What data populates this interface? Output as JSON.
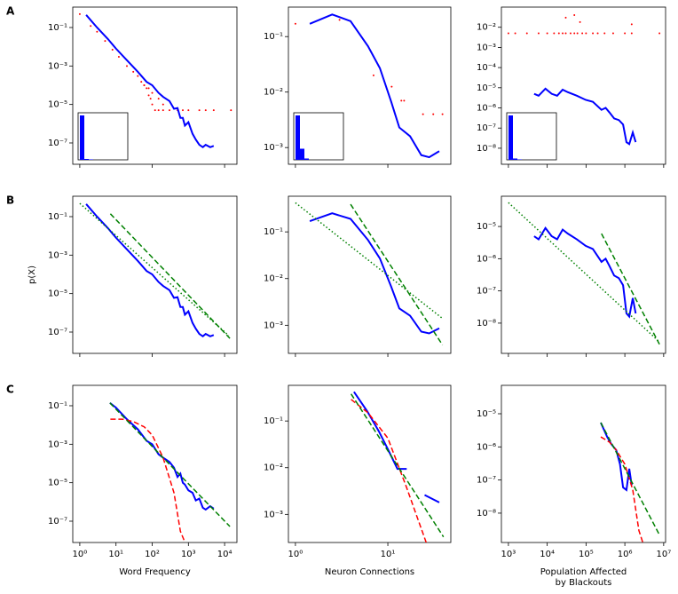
{
  "chart_data": [
    {
      "type": "line",
      "panel_label": "A",
      "xlog": true,
      "ylog": true,
      "xlim": [
        0.64,
        21900
      ],
      "ylim": [
        7.8e-09,
        1.15
      ],
      "xticks": [
        1,
        100,
        10000
      ],
      "yticks": [
        {
          "value": 0.1,
          "label": "10⁻¹"
        },
        {
          "value": 0.001,
          "label": "10⁻³"
        },
        {
          "value": 1e-05,
          "label": "10⁻⁵"
        },
        {
          "value": 1e-07,
          "label": "10⁻⁷"
        }
      ],
      "series": [
        {
          "style": "points",
          "color": "#ff0000",
          "x": [
            1,
            2,
            3,
            5,
            8,
            12,
            20,
            30,
            40,
            50,
            60,
            70,
            80,
            90,
            100,
            120,
            150,
            200,
            300,
            500,
            700,
            1000,
            2000,
            3000,
            5000,
            15000,
            60,
            80,
            100,
            150,
            200
          ],
          "values": [
            0.5,
            0.12,
            0.06,
            0.02,
            0.007,
            0.003,
            0.001,
            0.0005,
            0.0003,
            0.00015,
            0.0001,
            7e-05,
            3e-05,
            2e-05,
            1e-05,
            5e-06,
            5e-06,
            5e-06,
            5e-06,
            5e-06,
            5e-06,
            5e-06,
            5e-06,
            5e-06,
            5e-06,
            5e-06,
            0.0001,
            7e-05,
            4e-05,
            2e-05,
            1e-05
          ]
        },
        {
          "style": "solid",
          "color": "#0000ff",
          "x": [
            1.5,
            3,
            6,
            10,
            20,
            40,
            70,
            100,
            150,
            200,
            300,
            400,
            500,
            600,
            700,
            800,
            1000,
            1300,
            1600,
            2000,
            2500,
            3000,
            4000,
            5000
          ],
          "values": [
            0.45,
            0.1,
            0.025,
            0.008,
            0.002,
            0.0005,
            0.00015,
            0.0001,
            4e-05,
            2.5e-05,
            1.5e-05,
            6e-06,
            6.5e-06,
            2e-06,
            2e-06,
            8e-07,
            1.2e-06,
            3e-07,
            1.5e-07,
            8e-08,
            6e-08,
            8e-08,
            6e-08,
            7e-08
          ]
        }
      ],
      "inset": {
        "color": "#0000ff",
        "values": [
          1,
          0.02,
          0.01
        ]
      }
    },
    {
      "type": "line",
      "xlog": true,
      "ylog": true,
      "xlim": [
        0.84,
        48
      ],
      "ylim": [
        0.0005,
        0.34
      ],
      "xticks": [
        1,
        10
      ],
      "yticks": [
        {
          "value": 0.1,
          "label": "10⁻¹"
        },
        {
          "value": 0.01,
          "label": "10⁻²"
        },
        {
          "value": 0.001,
          "label": "10⁻³"
        }
      ],
      "series": [
        {
          "style": "points",
          "color": "#ff0000",
          "x": [
            1,
            3,
            7,
            11,
            14,
            15,
            24,
            31,
            39
          ],
          "values": [
            0.17,
            0.2,
            0.02,
            0.0125,
            0.007,
            0.007,
            0.004,
            0.004,
            0.004
          ]
        },
        {
          "style": "solid",
          "color": "#0000ff",
          "x": [
            1.43,
            2.5,
            3.95,
            6.1,
            8.2,
            10.9,
            13.3,
            17.4,
            23,
            28,
            36
          ],
          "values": [
            0.17,
            0.25,
            0.19,
            0.067,
            0.027,
            0.0066,
            0.0023,
            0.0016,
            0.00073,
            0.00067,
            0.00086
          ]
        }
      ],
      "inset": {
        "color": "#0000ff",
        "values": [
          1,
          0.25,
          0.03
        ]
      }
    },
    {
      "type": "line",
      "xlog": true,
      "ylog": true,
      "xlim": [
        660,
        11200000
      ],
      "ylim": [
        1.6e-09,
        0.1
      ],
      "xticks": [
        1000,
        10000,
        100000,
        1000000,
        10000000
      ],
      "yticks": [
        {
          "value": 0.01,
          "label": "10⁻²"
        },
        {
          "value": 0.001,
          "label": "10⁻³"
        },
        {
          "value": 0.0001,
          "label": "10⁻⁴"
        },
        {
          "value": 1e-05,
          "label": "10⁻⁵"
        },
        {
          "value": 1e-06,
          "label": "10⁻⁶"
        },
        {
          "value": 1e-07,
          "label": "10⁻⁷"
        },
        {
          "value": 1e-08,
          "label": "10⁻⁸"
        }
      ],
      "series": [
        {
          "style": "points",
          "color": "#ff0000",
          "x": [
            1000,
            1500,
            3000,
            6000,
            10000,
            15000,
            20000,
            25000,
            30000,
            40000,
            50000,
            60000,
            80000,
            100000,
            150000,
            200000,
            300000,
            500000,
            1000000,
            1500000,
            7800000,
            30000,
            50000,
            70000,
            1500000
          ],
          "values": [
            0.005,
            0.005,
            0.005,
            0.005,
            0.005,
            0.005,
            0.005,
            0.005,
            0.005,
            0.005,
            0.005,
            0.005,
            0.005,
            0.005,
            0.005,
            0.005,
            0.005,
            0.005,
            0.005,
            0.005,
            0.005,
            0.03,
            0.04,
            0.018,
            0.014
          ]
        },
        {
          "style": "solid",
          "color": "#0000ff",
          "x": [
            4600,
            6000,
            9000,
            13000,
            18000,
            25000,
            34000,
            58000,
            98000,
            150000,
            250000,
            320000,
            400000,
            530000,
            700000,
            900000,
            1100000,
            1300000,
            1600000,
            1900000
          ],
          "values": [
            5e-06,
            4e-06,
            9e-06,
            5e-06,
            4e-06,
            8e-06,
            6e-06,
            4e-06,
            2.5e-06,
            2e-06,
            8e-07,
            1e-06,
            6e-07,
            3e-07,
            2.5e-07,
            1.5e-07,
            2e-08,
            1.6e-08,
            6e-08,
            2e-08
          ]
        }
      ],
      "inset": {
        "color": "#0000ff",
        "values": [
          1,
          0.03,
          0.01
        ]
      }
    },
    {
      "type": "line",
      "panel_label": "B",
      "ylabel": "p(X)",
      "xlog": true,
      "ylog": true,
      "xlim": [
        0.64,
        21900
      ],
      "ylim": [
        7.8e-09,
        1.15
      ],
      "xticks": [
        1,
        100,
        10000
      ],
      "yticks": [
        {
          "value": 0.1,
          "label": "10⁻¹"
        },
        {
          "value": 0.001,
          "label": "10⁻³"
        },
        {
          "value": 1e-05,
          "label": "10⁻⁵"
        },
        {
          "value": 1e-07,
          "label": "10⁻⁷"
        }
      ],
      "series": [
        {
          "style": "solid",
          "color": "#0000ff",
          "x": [
            1.5,
            3,
            6,
            10,
            20,
            40,
            70,
            100,
            150,
            200,
            300,
            400,
            500,
            600,
            700,
            800,
            1000,
            1300,
            1600,
            2000,
            2500,
            3000,
            4000,
            5000
          ],
          "values": [
            0.45,
            0.1,
            0.025,
            0.008,
            0.002,
            0.0005,
            0.00015,
            0.0001,
            4e-05,
            2.5e-05,
            1.5e-05,
            6e-06,
            6.5e-06,
            2e-06,
            2e-06,
            8e-07,
            1.2e-06,
            3e-07,
            1.5e-07,
            8e-08,
            6e-08,
            8e-08,
            6e-08,
            7e-08
          ]
        },
        {
          "style": "dotted",
          "color": "#008000",
          "x": [
            1,
            13000
          ],
          "values": [
            0.49,
            6.6e-08
          ]
        },
        {
          "style": "dashed",
          "color": "#008000",
          "x": [
            7,
            14000
          ],
          "values": [
            0.14,
            4.7e-08
          ]
        }
      ]
    },
    {
      "type": "line",
      "xlog": true,
      "ylog": true,
      "xlim": [
        0.84,
        48
      ],
      "ylim": [
        0.00025,
        0.58
      ],
      "xticks": [
        1,
        10
      ],
      "yticks": [
        {
          "value": 0.1,
          "label": "10⁻¹"
        },
        {
          "value": 0.01,
          "label": "10⁻²"
        },
        {
          "value": 0.001,
          "label": "10⁻³"
        }
      ],
      "series": [
        {
          "style": "solid",
          "color": "#0000ff",
          "x": [
            1.43,
            2.5,
            3.95,
            6.1,
            8.2,
            10.9,
            13.3,
            17.4,
            23,
            28,
            36
          ],
          "values": [
            0.17,
            0.25,
            0.19,
            0.067,
            0.027,
            0.0066,
            0.0023,
            0.0016,
            0.00073,
            0.00067,
            0.00086
          ]
        },
        {
          "style": "dotted",
          "color": "#008000",
          "x": [
            1,
            39
          ],
          "values": [
            0.42,
            0.0014
          ]
        },
        {
          "style": "dashed",
          "color": "#008000",
          "x": [
            3.95,
            39
          ],
          "values": [
            0.39,
            0.00038
          ]
        }
      ]
    },
    {
      "type": "line",
      "xlog": true,
      "ylog": true,
      "xlim": [
        660,
        11200000
      ],
      "ylim": [
        1.15e-09,
        8.7e-05
      ],
      "xticks": [
        1000,
        10000,
        100000,
        1000000,
        10000000
      ],
      "yticks": [
        {
          "value": 1e-05,
          "label": "10⁻⁵"
        },
        {
          "value": 1e-06,
          "label": "10⁻⁶"
        },
        {
          "value": 1e-07,
          "label": "10⁻⁷"
        },
        {
          "value": 1e-08,
          "label": "10⁻⁸"
        }
      ],
      "series": [
        {
          "style": "solid",
          "color": "#0000ff",
          "x": [
            4600,
            6000,
            9000,
            13000,
            18000,
            25000,
            34000,
            58000,
            98000,
            150000,
            250000,
            320000,
            400000,
            530000,
            700000,
            900000,
            1100000,
            1300000,
            1600000,
            1900000
          ],
          "values": [
            5e-06,
            4e-06,
            9e-06,
            5e-06,
            4e-06,
            8e-06,
            6e-06,
            4e-06,
            2.5e-06,
            2e-06,
            8e-07,
            1e-06,
            6e-07,
            3e-07,
            2.5e-07,
            1.5e-07,
            2e-08,
            1.6e-08,
            6e-08,
            2e-08
          ]
        },
        {
          "style": "dotted",
          "color": "#008000",
          "x": [
            1000,
            7800000
          ],
          "values": [
            5.5e-05,
            2.6e-09
          ]
        },
        {
          "style": "dashed",
          "color": "#008000",
          "x": [
            250000,
            7800000
          ],
          "values": [
            6e-06,
            2.2e-09
          ]
        }
      ]
    },
    {
      "type": "line",
      "panel_label": "C",
      "xlabel": [
        "Word Frequency"
      ],
      "xlog": true,
      "ylog": true,
      "xlim": [
        0.64,
        21900
      ],
      "ylim": [
        7.8e-09,
        1.15
      ],
      "xticks": [
        {
          "value": 1,
          "label": "10⁰"
        },
        {
          "value": 10,
          "label": "10¹"
        },
        {
          "value": 100,
          "label": "10²"
        },
        {
          "value": 1000,
          "label": "10³"
        },
        {
          "value": 10000,
          "label": "10⁴"
        }
      ],
      "yticks": [
        {
          "value": 0.1,
          "label": "10⁻¹"
        },
        {
          "value": 0.001,
          "label": "10⁻³"
        },
        {
          "value": 1e-05,
          "label": "10⁻⁵"
        },
        {
          "value": 1e-07,
          "label": "10⁻⁷"
        }
      ],
      "series": [
        {
          "style": "solid",
          "color": "#0000ff",
          "x": [
            6.8,
            10,
            20,
            40,
            70,
            100,
            150,
            200,
            300,
            400,
            500,
            600,
            700,
            800,
            1000,
            1300,
            1600,
            2000,
            2500,
            3000,
            4000,
            5000
          ],
          "values": [
            0.14,
            0.08,
            0.02,
            0.006,
            0.0015,
            0.001,
            0.0003,
            0.0002,
            0.00012,
            6e-05,
            2e-05,
            3e-05,
            1e-05,
            8e-06,
            4e-06,
            3e-06,
            1.2e-06,
            1.5e-06,
            5e-07,
            4e-07,
            6e-07,
            4.5e-07
          ]
        },
        {
          "style": "dashed",
          "color": "#ff0000",
          "x": [
            7,
            15,
            30,
            60,
            100,
            200,
            400,
            600,
            800
          ],
          "values": [
            0.02,
            0.02,
            0.015,
            0.008,
            0.003,
            0.0002,
            3e-06,
            3e-08,
            8e-09
          ]
        },
        {
          "style": "dashed",
          "color": "#008000",
          "x": [
            6.8,
            14000
          ],
          "values": [
            0.14,
            5.3e-08
          ]
        }
      ]
    },
    {
      "type": "line",
      "xlabel": [
        "Neuron Connections"
      ],
      "xlog": true,
      "ylog": true,
      "xlim": [
        0.84,
        48
      ],
      "ylim": [
        0.00025,
        0.58
      ],
      "xticks": [
        {
          "value": 1,
          "label": "10⁰"
        },
        {
          "value": 10,
          "label": "10¹"
        }
      ],
      "yticks": [
        {
          "value": 0.1,
          "label": "10⁻¹"
        },
        {
          "value": 0.01,
          "label": "10⁻²"
        },
        {
          "value": 0.001,
          "label": "10⁻³"
        }
      ],
      "series": [
        {
          "style": "solid",
          "color": "#0000ff",
          "x": [
            4.3,
            6,
            8,
            10,
            12.7,
            16,
            null,
            25,
            36
          ],
          "values": [
            0.42,
            0.16,
            0.06,
            0.025,
            0.0094,
            0.0094,
            null,
            0.0026,
            0.0018
          ]
        },
        {
          "style": "dashed",
          "color": "#ff0000",
          "x": [
            4,
            6.1,
            10,
            16,
            26
          ],
          "values": [
            0.29,
            0.15,
            0.043,
            0.0037,
            0.00025
          ]
        },
        {
          "style": "dashed",
          "color": "#008000",
          "x": [
            4,
            40
          ],
          "values": [
            0.38,
            0.00033
          ]
        }
      ]
    },
    {
      "type": "line",
      "xlabel": [
        "Population Affected",
        "by Blackouts"
      ],
      "xlog": true,
      "ylog": true,
      "xlim": [
        660,
        11200000
      ],
      "ylim": [
        1.3e-09,
        7.2e-05
      ],
      "xticks": [
        {
          "value": 1000,
          "label": "10³"
        },
        {
          "value": 10000,
          "label": "10⁴"
        },
        {
          "value": 100000,
          "label": "10⁵"
        },
        {
          "value": 1000000,
          "label": "10⁶"
        },
        {
          "value": 10000000,
          "label": "10⁷"
        }
      ],
      "yticks": [
        {
          "value": 1e-05,
          "label": "10⁻⁵"
        },
        {
          "value": 1e-06,
          "label": "10⁻⁶"
        },
        {
          "value": 1e-07,
          "label": "10⁻⁷"
        },
        {
          "value": 1e-08,
          "label": "10⁻⁸"
        }
      ],
      "series": [
        {
          "style": "solid",
          "color": "#0000ff",
          "x": [
            240000,
            350000,
            450000,
            600000,
            750000,
            900000,
            1100000,
            1300000,
            1500000
          ],
          "values": [
            5.4e-06,
            2e-06,
            1.2e-06,
            8e-07,
            3e-07,
            6e-08,
            5e-08,
            2.2e-07,
            7e-08
          ]
        },
        {
          "style": "dashed",
          "color": "#ff0000",
          "x": [
            240000,
            400000,
            600000,
            1000000,
            1600000,
            2300000,
            2900000
          ],
          "values": [
            2e-06,
            1.4e-06,
            8e-07,
            3e-07,
            5e-08,
            3e-09,
            1.3e-09
          ]
        },
        {
          "style": "dashed",
          "color": "#008000",
          "x": [
            240000,
            7800000
          ],
          "values": [
            5.4e-06,
            2.2e-09
          ]
        }
      ]
    }
  ]
}
